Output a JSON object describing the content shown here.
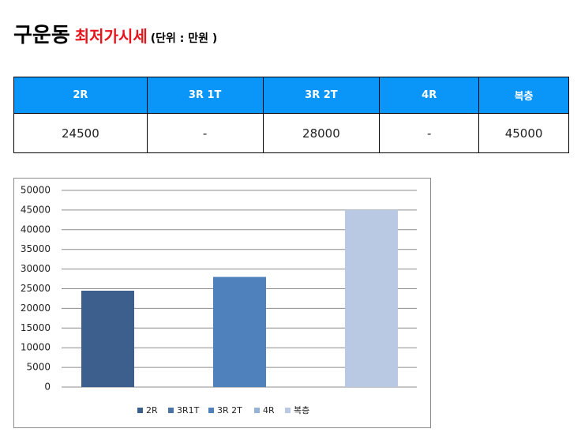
{
  "header": {
    "title": "구운동",
    "subtitle": "최저가시세",
    "unit": "(단위 : 만원 )"
  },
  "table": {
    "columns": [
      "2R",
      "3R 1T",
      "3R 2T",
      "4R",
      "복층"
    ],
    "rows": [
      [
        "24500",
        "-",
        "28000",
        "-",
        "45000"
      ]
    ]
  },
  "chart_data": {
    "type": "bar",
    "categories": [
      "2R",
      "3R1T",
      "3R 2T",
      "4R",
      "복층"
    ],
    "values": [
      24500,
      null,
      28000,
      null,
      45000
    ],
    "colors": [
      "#3c5f8e",
      "#4a74a8",
      "#4f81bd",
      "#95b3d7",
      "#b9c9e3"
    ],
    "ylim": [
      0,
      50000
    ],
    "yticks": [
      0,
      5000,
      10000,
      15000,
      20000,
      25000,
      30000,
      35000,
      40000,
      45000,
      50000
    ],
    "grid": true,
    "legend": "bottom"
  }
}
